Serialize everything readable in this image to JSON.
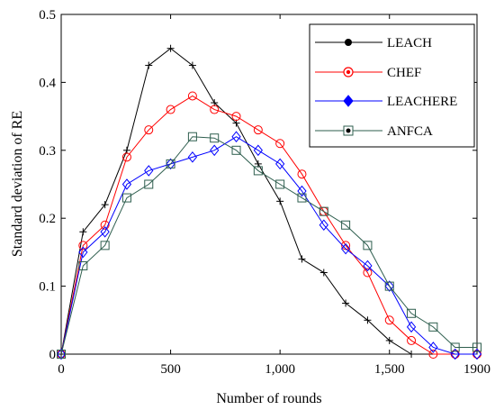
{
  "chart_data": {
    "type": "line",
    "xlabel": "Number of rounds",
    "ylabel": "Standard deviation of RE",
    "xlim": [
      0,
      1900
    ],
    "ylim": [
      0,
      0.5
    ],
    "x_ticks": [
      {
        "value": 0,
        "label": "0"
      },
      {
        "value": 500,
        "label": "500"
      },
      {
        "value": 1000,
        "label": "1,000"
      },
      {
        "value": 1500,
        "label": "1,500"
      },
      {
        "value": 1900,
        "label": "1900"
      }
    ],
    "y_ticks": [
      {
        "value": 0,
        "label": "0"
      },
      {
        "value": 0.1,
        "label": "0.1"
      },
      {
        "value": 0.2,
        "label": "0.2"
      },
      {
        "value": 0.3,
        "label": "0.3"
      },
      {
        "value": 0.4,
        "label": "0.4"
      },
      {
        "value": 0.5,
        "label": "0.5"
      }
    ],
    "legend_position": "top-right",
    "grid": false,
    "series": [
      {
        "name": "LEACH",
        "color": "#000000",
        "marker": "plus",
        "x": [
          0,
          100,
          200,
          300,
          400,
          500,
          600,
          700,
          800,
          900,
          1000,
          1100,
          1200,
          1300,
          1400,
          1500,
          1600
        ],
        "y": [
          0,
          0.18,
          0.22,
          0.3,
          0.425,
          0.45,
          0.425,
          0.37,
          0.34,
          0.28,
          0.225,
          0.14,
          0.12,
          0.075,
          0.05,
          0.02,
          0
        ]
      },
      {
        "name": "CHEF",
        "color": "#ff0000",
        "marker": "circle",
        "x": [
          0,
          100,
          200,
          300,
          400,
          500,
          600,
          700,
          800,
          900,
          1000,
          1100,
          1200,
          1300,
          1400,
          1500,
          1600,
          1700,
          1800,
          1900
        ],
        "y": [
          0,
          0.16,
          0.19,
          0.29,
          0.33,
          0.36,
          0.38,
          0.36,
          0.35,
          0.33,
          0.31,
          0.265,
          0.21,
          0.16,
          0.12,
          0.05,
          0.02,
          0,
          0,
          0
        ]
      },
      {
        "name": "LEACHERE",
        "color": "#0000ff",
        "marker": "diamond",
        "x": [
          0,
          100,
          200,
          300,
          400,
          500,
          600,
          700,
          800,
          900,
          1000,
          1100,
          1200,
          1300,
          1400,
          1500,
          1600,
          1700,
          1800,
          1900
        ],
        "y": [
          0,
          0.15,
          0.18,
          0.25,
          0.27,
          0.28,
          0.29,
          0.3,
          0.32,
          0.3,
          0.28,
          0.24,
          0.19,
          0.155,
          0.13,
          0.1,
          0.04,
          0.01,
          0,
          0
        ]
      },
      {
        "name": "ANFCA",
        "color": "#2e5e4e",
        "marker": "square",
        "x": [
          0,
          100,
          200,
          300,
          400,
          500,
          600,
          700,
          800,
          900,
          1000,
          1100,
          1200,
          1300,
          1400,
          1500,
          1600,
          1700,
          1800,
          1900
        ],
        "y": [
          0,
          0.13,
          0.16,
          0.23,
          0.25,
          0.28,
          0.32,
          0.318,
          0.3,
          0.27,
          0.25,
          0.23,
          0.21,
          0.19,
          0.16,
          0.1,
          0.06,
          0.04,
          0.01,
          0.01
        ]
      }
    ]
  }
}
